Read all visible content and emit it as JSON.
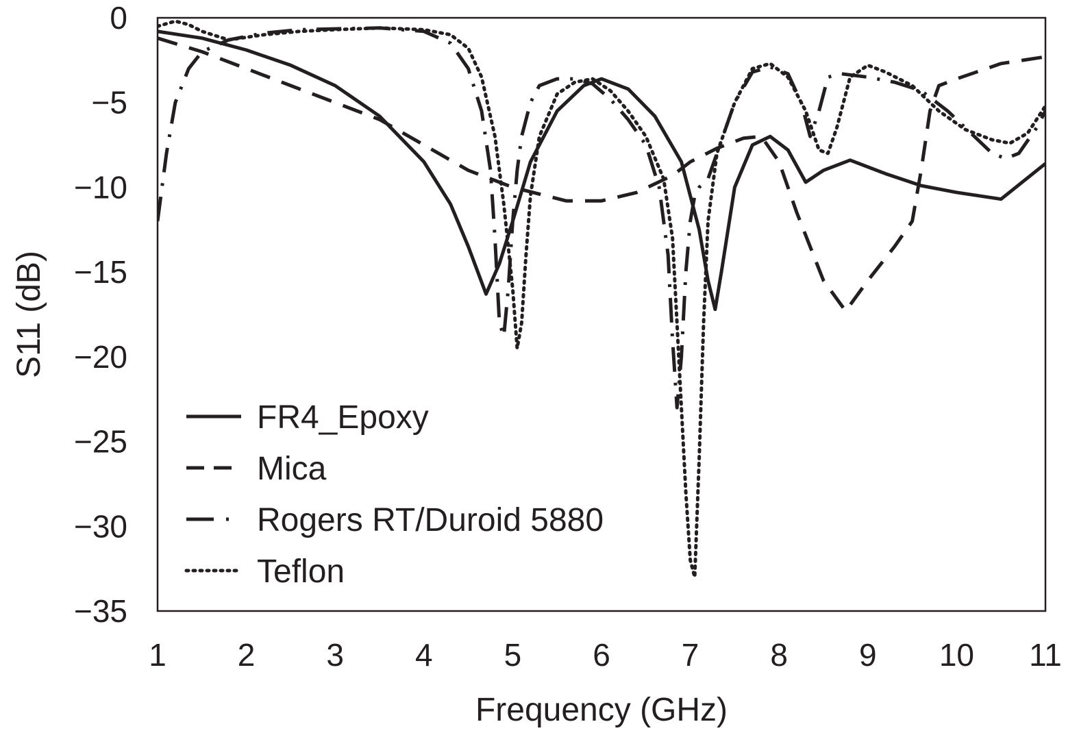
{
  "chart_data": {
    "type": "line",
    "title": "",
    "xlabel": "Frequency (GHz)",
    "ylabel": "S11 (dB)",
    "xlim": [
      1,
      11
    ],
    "ylim": [
      -35,
      0
    ],
    "xticks": [
      "1",
      "2",
      "3",
      "4",
      "5",
      "6",
      "7",
      "8",
      "9",
      "10",
      "11"
    ],
    "yticks": [
      "0",
      "−5",
      "−10",
      "−15",
      "−20",
      "−25",
      "−30",
      "−35"
    ],
    "grid": false,
    "legend_position": "bottom-left",
    "series": [
      {
        "name": "FR4_Epoxy",
        "style": "solid",
        "color": "#231f20",
        "x": [
          1.0,
          1.5,
          2.0,
          2.5,
          3.0,
          3.5,
          4.0,
          4.3,
          4.5,
          4.7,
          4.85,
          5.0,
          5.2,
          5.5,
          5.8,
          6.0,
          6.3,
          6.6,
          6.9,
          7.1,
          7.2,
          7.28,
          7.35,
          7.5,
          7.7,
          7.9,
          8.1,
          8.3,
          8.5,
          8.8,
          9.2,
          9.6,
          10.0,
          10.5,
          11.0
        ],
        "y": [
          -0.8,
          -1.2,
          -1.9,
          -2.8,
          -4.0,
          -5.8,
          -8.5,
          -11.0,
          -13.5,
          -16.3,
          -14.5,
          -12.0,
          -8.5,
          -5.5,
          -4.0,
          -3.6,
          -4.2,
          -5.8,
          -8.5,
          -12.5,
          -15.5,
          -17.2,
          -15.0,
          -10.0,
          -7.5,
          -7.0,
          -7.8,
          -9.7,
          -9.0,
          -8.4,
          -9.2,
          -9.9,
          -10.3,
          -10.7,
          -8.6
        ]
      },
      {
        "name": "Mica",
        "style": "dashed",
        "color": "#231f20",
        "x": [
          1.0,
          1.5,
          2.0,
          2.5,
          3.0,
          3.5,
          4.0,
          4.5,
          4.8,
          5.0,
          5.3,
          5.6,
          6.0,
          6.4,
          6.8,
          7.0,
          7.3,
          7.6,
          7.8,
          8.0,
          8.2,
          8.5,
          8.75,
          9.0,
          9.3,
          9.5,
          9.6,
          9.7,
          9.8,
          10.0,
          10.5,
          11.0
        ],
        "y": [
          -1.2,
          -2.0,
          -3.0,
          -4.0,
          -5.0,
          -6.0,
          -7.5,
          -9.0,
          -9.6,
          -10.0,
          -10.4,
          -10.8,
          -10.8,
          -10.3,
          -9.3,
          -8.5,
          -7.7,
          -7.1,
          -7.0,
          -8.5,
          -11.5,
          -15.5,
          -17.3,
          -15.5,
          -13.5,
          -12.0,
          -9.0,
          -5.5,
          -4.0,
          -3.6,
          -2.7,
          -2.3
        ]
      },
      {
        "name": "Rogers RT/Duroid 5880",
        "style": "dashdot",
        "color": "#231f20",
        "x": [
          1.0,
          1.1,
          1.2,
          1.35,
          1.5,
          1.8,
          2.2,
          2.6,
          3.0,
          3.5,
          4.0,
          4.3,
          4.5,
          4.65,
          4.75,
          4.8,
          4.85,
          4.9,
          4.95,
          5.0,
          5.05,
          5.1,
          5.2,
          5.3,
          5.5,
          5.7,
          5.9,
          6.1,
          6.3,
          6.5,
          6.65,
          6.75,
          6.8,
          6.85,
          6.9,
          6.95,
          7.0,
          7.05,
          7.1,
          7.2,
          7.3,
          7.5,
          7.7,
          7.9,
          8.1,
          8.25,
          8.35,
          8.45,
          8.55,
          8.7,
          9.0,
          9.3,
          9.6,
          9.9,
          10.2,
          10.4,
          10.55,
          10.7,
          10.9,
          11.0
        ],
        "y": [
          -12.0,
          -8.0,
          -5.0,
          -3.0,
          -2.0,
          -1.3,
          -0.9,
          -0.7,
          -0.65,
          -0.6,
          -0.8,
          -1.5,
          -3.0,
          -5.5,
          -9.0,
          -13.0,
          -18.0,
          -18.8,
          -16.0,
          -12.0,
          -9.0,
          -7.0,
          -5.0,
          -4.0,
          -3.6,
          -3.6,
          -3.9,
          -4.8,
          -6.0,
          -7.5,
          -10.0,
          -14.0,
          -19.0,
          -23.0,
          -20.0,
          -15.0,
          -12.0,
          -10.5,
          -10.0,
          -9.5,
          -8.0,
          -5.0,
          -3.2,
          -2.9,
          -3.3,
          -5.0,
          -7.0,
          -5.5,
          -3.5,
          -3.3,
          -3.5,
          -3.8,
          -4.3,
          -5.5,
          -7.0,
          -8.0,
          -8.3,
          -8.0,
          -6.5,
          -5.5
        ]
      },
      {
        "name": "Teflon",
        "style": "dotted",
        "color": "#231f20",
        "x": [
          1.0,
          1.2,
          1.35,
          1.5,
          1.8,
          2.2,
          2.6,
          3.0,
          3.5,
          4.0,
          4.3,
          4.5,
          4.65,
          4.8,
          4.9,
          5.0,
          5.05,
          5.1,
          5.15,
          5.2,
          5.3,
          5.5,
          5.7,
          5.9,
          6.1,
          6.3,
          6.5,
          6.7,
          6.8,
          6.85,
          6.9,
          6.95,
          7.0,
          7.05,
          7.1,
          7.15,
          7.2,
          7.3,
          7.5,
          7.7,
          7.9,
          8.1,
          8.3,
          8.45,
          8.55,
          8.65,
          8.8,
          9.0,
          9.2,
          9.5,
          9.8,
          10.1,
          10.4,
          10.6,
          10.8,
          11.0
        ],
        "y": [
          -0.5,
          -0.2,
          -0.4,
          -0.8,
          -1.3,
          -1.0,
          -0.8,
          -0.7,
          -0.6,
          -0.7,
          -1.0,
          -1.8,
          -3.5,
          -7.0,
          -11.0,
          -16.0,
          -19.5,
          -18.0,
          -14.0,
          -10.5,
          -7.0,
          -4.5,
          -3.8,
          -3.6,
          -4.3,
          -5.5,
          -7.0,
          -9.5,
          -13.0,
          -18.0,
          -23.0,
          -28.0,
          -32.0,
          -33.0,
          -26.0,
          -18.0,
          -12.0,
          -8.0,
          -5.0,
          -3.0,
          -2.7,
          -3.5,
          -5.5,
          -7.8,
          -8.0,
          -6.5,
          -3.5,
          -2.8,
          -3.2,
          -4.0,
          -5.5,
          -6.6,
          -7.2,
          -7.4,
          -6.8,
          -5.2
        ]
      }
    ]
  }
}
